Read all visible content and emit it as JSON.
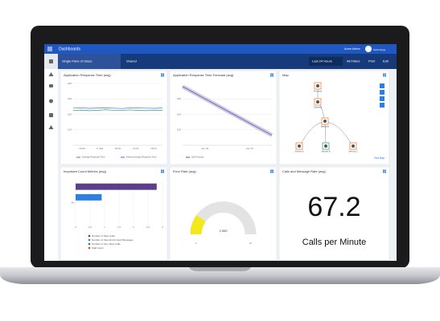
{
  "top_bar": {
    "title": "Dashboards",
    "user": "Acme Admin",
    "brand": "Technology"
  },
  "toolbar": {
    "dashboard": "Single Pane of Glass",
    "shared": "Shared",
    "time_range": "Last 24 Hours",
    "filters": "All Filters",
    "print": "Print",
    "edit": "Edit"
  },
  "panels": [
    {
      "title": "Application Response Time (avg)",
      "type": "line",
      "ylim": [
        0,
        400
      ],
      "yticks": [
        100,
        200,
        300,
        400
      ],
      "x_labels": [
        "00:00",
        "6. Mar",
        "06:00",
        "12:00",
        "18:00"
      ],
      "series": [
        {
          "name": "Average Response Time",
          "color": "#2e9b6a",
          "values": [
            225,
            228,
            224,
            226,
            230,
            227,
            225,
            229,
            226,
            224,
            227,
            226
          ]
        },
        {
          "name": "Default Average Response Time",
          "color": "#4a6fd1",
          "values": [
            240,
            242,
            239,
            241,
            243,
            240,
            238,
            241,
            242,
            240,
            239,
            241
          ]
        }
      ]
    },
    {
      "title": "Application Response Time Forecast (avg)",
      "type": "forecast",
      "ylim": [
        0,
        400
      ],
      "yticks": [
        100,
        200,
        300
      ],
      "x_labels": [
        "Apr 29",
        "Apr 30"
      ],
      "series": [
        {
          "name": "p50 Forecast",
          "color": "#5b4fa8",
          "values": [
            380,
            345,
            310,
            275,
            240,
            205,
            170,
            135,
            100,
            65
          ]
        }
      ]
    },
    {
      "title": "Map",
      "type": "map",
      "nodes": [
        "Frontend",
        "Gateway",
        "Backend",
        "Service A",
        "Service B",
        "Service C"
      ],
      "link": "Edit Map"
    },
    {
      "title": "Important Count Metrics (avg)",
      "type": "bar",
      "category": "All",
      "xlim": [
        0,
        3
      ],
      "xticks": [
        0,
        0.5,
        1,
        1.5,
        2,
        2.5,
        3
      ],
      "series": [
        {
          "name": "Number of Slow Calls",
          "color": "#5b3f8c",
          "values": [
            2.8
          ]
        },
        {
          "name": "Number of Slow End to End Messages",
          "color": "#2f7fe0",
          "values": [
            0.9
          ]
        },
        {
          "name": "Number of Very Slow Calls",
          "color": "#1e8a5a",
          "values": [
            0
          ]
        },
        {
          "name": "Stall Count",
          "color": "#e8452c",
          "values": [
            0
          ]
        }
      ]
    },
    {
      "title": "Error Rate (avg)",
      "type": "gauge",
      "min": 0,
      "max": 10,
      "value": 2,
      "value_label": "2.000",
      "color": "#f2e81c"
    },
    {
      "title": "Calls and Message Rate (avg)",
      "type": "big",
      "value": 67.2,
      "unit": "Calls per Minute"
    }
  ]
}
